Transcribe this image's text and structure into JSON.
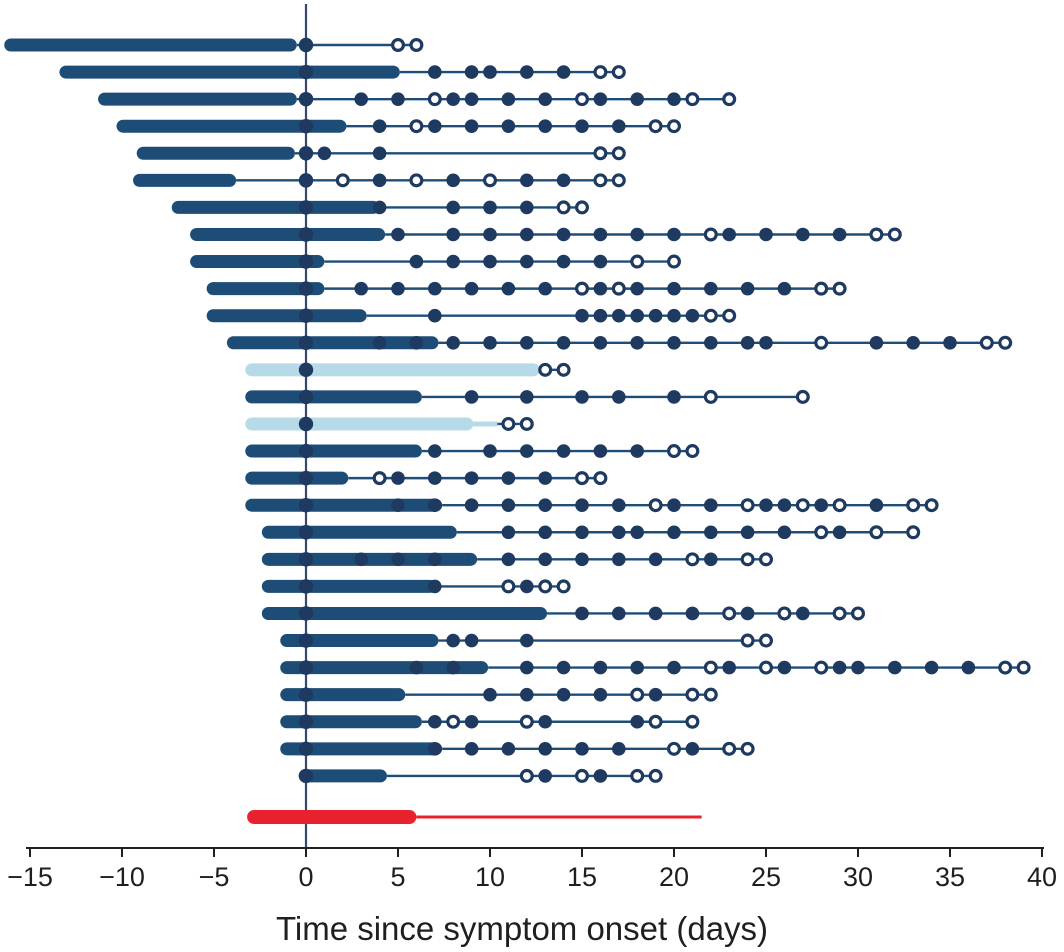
{
  "chart_data": {
    "type": "scatter",
    "subtype": "patient-timeline-gantt",
    "title": "",
    "xlabel": "Time since symptom onset (days)",
    "ylabel": "",
    "xlim": [
      -15,
      40
    ],
    "xticks": [
      -15,
      -10,
      -5,
      0,
      5,
      10,
      15,
      20,
      25,
      30,
      35,
      40
    ],
    "grid": false,
    "legend": "none",
    "zero_line_x": 0,
    "marker_styles": {
      "filled": "solid navy circle",
      "open": "white circle with navy ring",
      "onset_dot": "solid navy circle at day 0"
    },
    "colors": {
      "bar_navy": "#1d4d77",
      "bar_light_blue": "#b7dae8",
      "bar_red": "#e8212e",
      "marker_navy": "#1f3a60",
      "line_navy": "#1e4e78",
      "zero_line": "#33486b",
      "axis": "#1f1f1f"
    },
    "rows": [
      {
        "id": "P01",
        "bar_color": "navy",
        "bar_start": -16.4,
        "bar_end": -0.5,
        "onset_dot": true,
        "filled_days": [],
        "open_days": [
          5,
          6
        ]
      },
      {
        "id": "P02",
        "bar_color": "navy",
        "bar_start": -13.4,
        "bar_end": 5.1,
        "onset_dot": true,
        "filled_days": [
          7,
          9,
          10,
          12,
          14
        ],
        "open_days": [
          16,
          17
        ]
      },
      {
        "id": "P03",
        "bar_color": "navy",
        "bar_start": -11.3,
        "bar_end": -0.5,
        "onset_dot": true,
        "filled_days": [
          3,
          5,
          8,
          9,
          11,
          13,
          16,
          18,
          20
        ],
        "open_days": [
          7,
          15,
          21,
          23
        ]
      },
      {
        "id": "P04",
        "bar_color": "navy",
        "bar_start": -10.3,
        "bar_end": 2.2,
        "onset_dot": true,
        "filled_days": [
          4,
          7,
          9,
          11,
          13,
          15,
          17
        ],
        "open_days": [
          6,
          19,
          20
        ]
      },
      {
        "id": "P05",
        "bar_color": "navy",
        "bar_start": -9.2,
        "bar_end": -0.6,
        "onset_dot": true,
        "filled_days": [
          1,
          4
        ],
        "open_days": [
          16,
          17
        ]
      },
      {
        "id": "P06",
        "bar_color": "navy",
        "bar_start": -9.4,
        "bar_end": -3.8,
        "onset_dot": true,
        "filled_days": [
          4,
          8,
          12,
          14
        ],
        "open_days": [
          2,
          6,
          10,
          16,
          17
        ]
      },
      {
        "id": "P07",
        "bar_color": "navy",
        "bar_start": -7.3,
        "bar_end": 4.0,
        "onset_dot": true,
        "filled_days": [
          4,
          8,
          10,
          12
        ],
        "open_days": [
          14,
          15
        ]
      },
      {
        "id": "P08",
        "bar_color": "navy",
        "bar_start": -6.3,
        "bar_end": 4.3,
        "onset_dot": true,
        "filled_days": [
          5,
          8,
          10,
          12,
          14,
          16,
          18,
          20,
          23,
          25,
          27,
          29
        ],
        "open_days": [
          22,
          31,
          32
        ]
      },
      {
        "id": "P09",
        "bar_color": "navy",
        "bar_start": -6.3,
        "bar_end": 1.0,
        "onset_dot": true,
        "filled_days": [
          6,
          8,
          10,
          12,
          14,
          16
        ],
        "open_days": [
          18,
          20
        ]
      },
      {
        "id": "P10",
        "bar_color": "navy",
        "bar_start": -5.4,
        "bar_end": 1.0,
        "onset_dot": true,
        "filled_days": [
          3,
          5,
          7,
          9,
          11,
          13,
          16,
          18,
          20,
          22,
          24,
          26
        ],
        "open_days": [
          15,
          17,
          28,
          29
        ]
      },
      {
        "id": "P11",
        "bar_color": "navy",
        "bar_start": -5.4,
        "bar_end": 3.3,
        "onset_dot": true,
        "filled_days": [
          7,
          15,
          16,
          17,
          18,
          19,
          20,
          21
        ],
        "open_days": [
          22,
          23
        ]
      },
      {
        "id": "P12",
        "bar_color": "navy",
        "bar_start": -4.3,
        "bar_end": 7.2,
        "onset_dot": true,
        "filled_days": [
          4,
          6,
          8,
          10,
          12,
          14,
          16,
          18,
          20,
          22,
          24,
          25,
          31,
          33,
          35
        ],
        "open_days": [
          28,
          37,
          38
        ]
      },
      {
        "id": "P13",
        "bar_color": "light",
        "bar_start": -3.3,
        "bar_end": 12.7,
        "onset_dot": true,
        "filled_days": [],
        "open_days": [
          13,
          14
        ]
      },
      {
        "id": "P14",
        "bar_color": "navy",
        "bar_start": -3.3,
        "bar_end": 6.3,
        "onset_dot": true,
        "filled_days": [
          9,
          12,
          15,
          17,
          20
        ],
        "open_days": [
          22,
          27
        ]
      },
      {
        "id": "P15",
        "bar_color": "light",
        "bar_start": -3.3,
        "bar_end": 9.1,
        "light_line_end": 10.4,
        "onset_dot": true,
        "filled_days": [],
        "open_days": [
          11,
          12
        ]
      },
      {
        "id": "P16",
        "bar_color": "navy",
        "bar_start": -3.3,
        "bar_end": 6.3,
        "onset_dot": true,
        "filled_days": [
          7,
          10,
          12,
          14,
          16,
          18
        ],
        "open_days": [
          20,
          21
        ]
      },
      {
        "id": "P17",
        "bar_color": "navy",
        "bar_start": -3.3,
        "bar_end": 2.3,
        "onset_dot": true,
        "filled_days": [
          5,
          7,
          9,
          11,
          13
        ],
        "open_days": [
          4,
          15,
          16
        ]
      },
      {
        "id": "P18",
        "bar_color": "navy",
        "bar_start": -3.3,
        "bar_end": 7.4,
        "onset_dot": true,
        "filled_days": [
          5,
          7,
          9,
          11,
          13,
          15,
          17,
          20,
          22,
          25,
          26,
          28,
          31
        ],
        "open_days": [
          19,
          24,
          27,
          29,
          33,
          34
        ]
      },
      {
        "id": "P19",
        "bar_color": "navy",
        "bar_start": -2.4,
        "bar_end": 8.2,
        "onset_dot": true,
        "filled_days": [
          11,
          13,
          15,
          17,
          18,
          20,
          22,
          24,
          26,
          29
        ],
        "open_days": [
          28,
          31,
          33
        ]
      },
      {
        "id": "P20",
        "bar_color": "navy",
        "bar_start": -2.4,
        "bar_end": 9.3,
        "onset_dot": true,
        "filled_days": [
          3,
          5,
          7,
          11,
          13,
          15,
          17,
          19,
          22
        ],
        "open_days": [
          21,
          24,
          25
        ]
      },
      {
        "id": "P21",
        "bar_color": "navy",
        "bar_start": -2.4,
        "bar_end": 7.1,
        "onset_dot": true,
        "filled_days": [
          7,
          12
        ],
        "open_days": [
          11,
          13,
          14
        ]
      },
      {
        "id": "P22",
        "bar_color": "navy",
        "bar_start": -2.4,
        "bar_end": 13.1,
        "onset_dot": true,
        "filled_days": [
          15,
          17,
          19,
          21,
          24,
          27
        ],
        "open_days": [
          23,
          26,
          29,
          30
        ]
      },
      {
        "id": "P23",
        "bar_color": "navy",
        "bar_start": -1.4,
        "bar_end": 7.2,
        "onset_dot": true,
        "filled_days": [
          8,
          9,
          12
        ],
        "open_days": [
          24,
          25
        ]
      },
      {
        "id": "P24",
        "bar_color": "navy",
        "bar_start": -1.4,
        "bar_end": 9.9,
        "onset_dot": true,
        "filled_days": [
          6,
          8,
          12,
          14,
          16,
          18,
          20,
          23,
          26,
          29,
          30,
          32,
          34,
          36
        ],
        "open_days": [
          22,
          25,
          28,
          38,
          39
        ]
      },
      {
        "id": "P25",
        "bar_color": "navy",
        "bar_start": -1.4,
        "bar_end": 5.4,
        "onset_dot": true,
        "filled_days": [
          10,
          12,
          14,
          16,
          19
        ],
        "open_days": [
          18,
          21,
          22
        ]
      },
      {
        "id": "P26",
        "bar_color": "navy",
        "bar_start": -1.4,
        "bar_end": 6.3,
        "onset_dot": true,
        "filled_days": [
          7,
          9,
          13,
          18
        ],
        "open_days": [
          8,
          12,
          19,
          21
        ]
      },
      {
        "id": "P27",
        "bar_color": "navy",
        "bar_start": -1.4,
        "bar_end": 7.4,
        "onset_dot": true,
        "filled_days": [
          7,
          9,
          11,
          13,
          15,
          17,
          21
        ],
        "open_days": [
          20,
          23,
          24
        ]
      },
      {
        "id": "P28",
        "bar_color": "navy",
        "bar_start": -0.4,
        "bar_end": 4.4,
        "onset_dot": true,
        "filled_days": [
          13,
          16
        ],
        "open_days": [
          12,
          15,
          18,
          19
        ]
      },
      {
        "id": "summary",
        "bar_color": "red",
        "bar_start": -3.2,
        "bar_end": 6.0,
        "onset_dot": false,
        "filled_days": [],
        "open_days": [],
        "line_end": 21.5
      }
    ]
  }
}
